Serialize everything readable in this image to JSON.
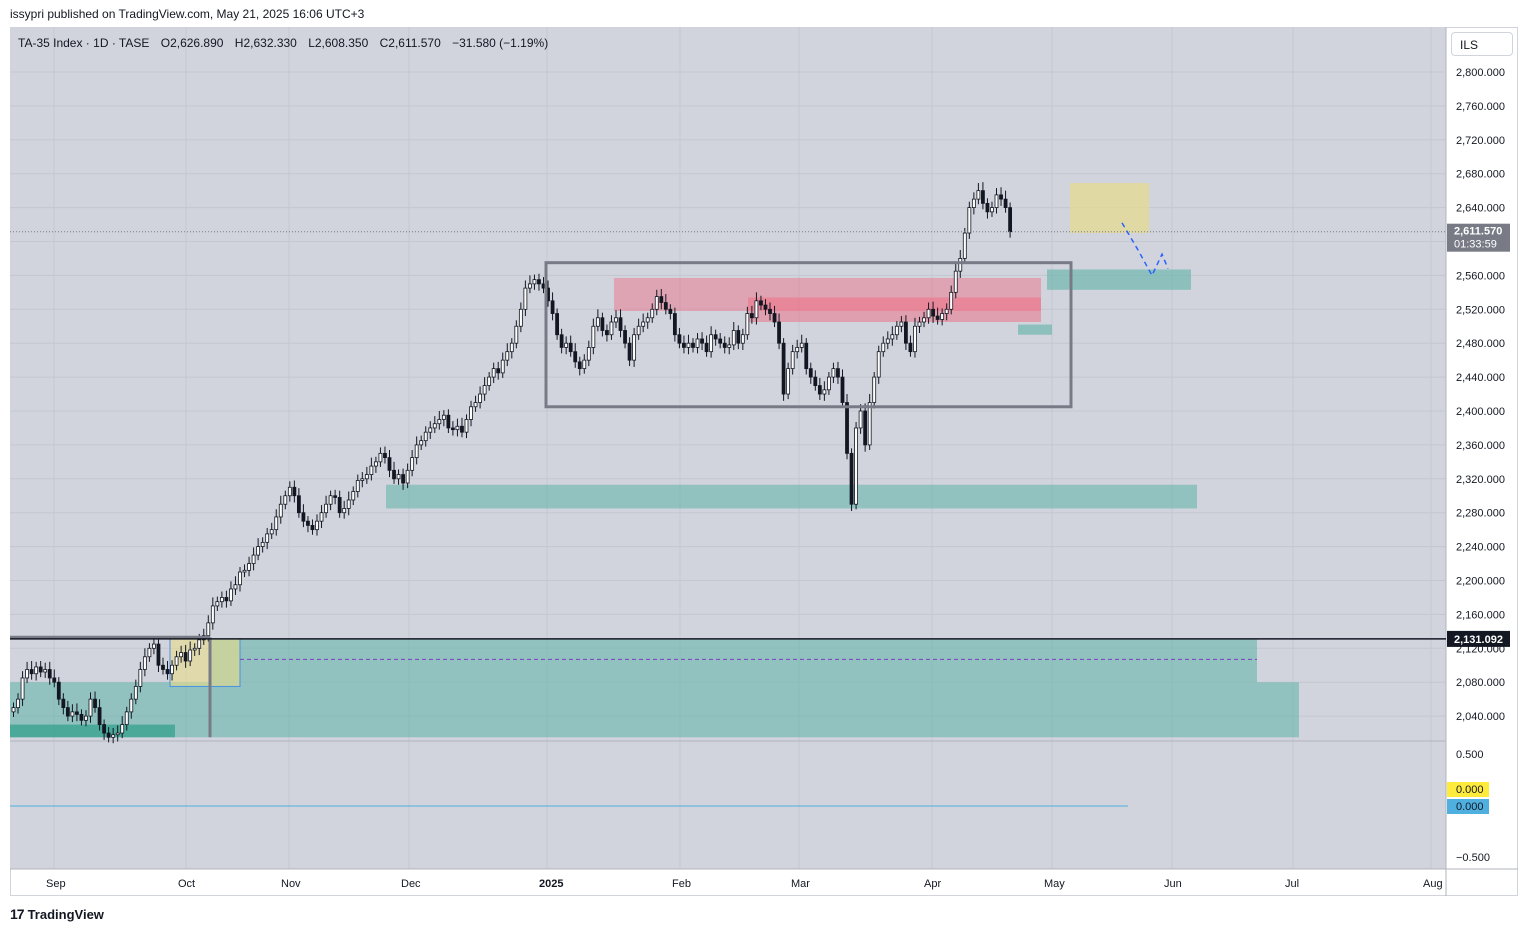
{
  "header": {
    "published": "issypri published on TradingView.com, May 21, 2025 16:06 UTC+3"
  },
  "legend": {
    "symbol": "TA-35 Index · 1D · TASE",
    "open": "O2,626.890",
    "high": "H2,632.330",
    "low": "L2,608.350",
    "close": "C2,611.570",
    "change": "−31.580 (−1.19%)"
  },
  "currency_button": "ILS",
  "footer": {
    "brand": "TradingView",
    "logo": "17"
  },
  "colors": {
    "bg": "#d1d4dc",
    "candle": "#131722",
    "teal_zone": "#5fb3a7",
    "red_zone": "#f06a80",
    "yellow_zone": "#e8dc8c",
    "range_box": "#787b86",
    "projection": "#2962ff"
  },
  "chart_data": {
    "type": "candlestick",
    "symbol": "TA-35 Index",
    "interval": "1D",
    "exchange": "TASE",
    "currency": "ILS",
    "ylim": [
      2000,
      2830
    ],
    "y_ticks": [
      "2,800.000",
      "2,760.000",
      "2,720.000",
      "2,680.000",
      "2,640.000",
      "2,600.000",
      "2,560.000",
      "2,520.000",
      "2,480.000",
      "2,440.000",
      "2,400.000",
      "2,360.000",
      "2,320.000",
      "2,280.000",
      "2,240.000",
      "2,200.000",
      "2,160.000",
      "2,120.000",
      "2,080.000",
      "2,040.000"
    ],
    "y_tick_values": [
      2800,
      2760,
      2720,
      2680,
      2640,
      2600,
      2560,
      2520,
      2480,
      2440,
      2400,
      2360,
      2320,
      2280,
      2240,
      2200,
      2160,
      2120,
      2080,
      2040
    ],
    "x_ticks": [
      "Sep",
      "Oct",
      "Nov",
      "Dec",
      "2025",
      "Feb",
      "Mar",
      "Apr",
      "May",
      "Jun",
      "Jul",
      "Aug"
    ],
    "last_price": {
      "label": "2,611.570",
      "countdown": "01:33:59",
      "value": 2611.57
    },
    "level_line": {
      "label": "2,131.092",
      "value": 2131.092
    },
    "indicator": {
      "ticks": [
        "0.500",
        "−0.500"
      ],
      "values": [
        "0.000",
        "0.000"
      ],
      "colors": [
        "#ffeb3b",
        "#4fb0e0"
      ]
    },
    "closes": [
      2050,
      2060,
      2085,
      2095,
      2090,
      2098,
      2092,
      2095,
      2085,
      2080,
      2060,
      2050,
      2040,
      2045,
      2042,
      2035,
      2040,
      2060,
      2050,
      2030,
      2020,
      2015,
      2018,
      2020,
      2030,
      2045,
      2060,
      2075,
      2095,
      2110,
      2120,
      2125,
      2100,
      2095,
      2090,
      2100,
      2110,
      2115,
      2105,
      2118,
      2120,
      2130,
      2135,
      2150,
      2170,
      2175,
      2180,
      2176,
      2190,
      2195,
      2210,
      2212,
      2220,
      2230,
      2240,
      2245,
      2255,
      2260,
      2275,
      2290,
      2300,
      2310,
      2300,
      2280,
      2270,
      2265,
      2260,
      2270,
      2280,
      2290,
      2300,
      2298,
      2280,
      2285,
      2295,
      2305,
      2318,
      2320,
      2325,
      2335,
      2340,
      2350,
      2345,
      2330,
      2320,
      2325,
      2315,
      2330,
      2345,
      2360,
      2365,
      2375,
      2380,
      2385,
      2390,
      2395,
      2380,
      2378,
      2382,
      2375,
      2390,
      2405,
      2410,
      2420,
      2430,
      2440,
      2450,
      2445,
      2460,
      2470,
      2480,
      2500,
      2520,
      2545,
      2550,
      2555,
      2550,
      2545,
      2530,
      2515,
      2490,
      2475,
      2480,
      2470,
      2458,
      2450,
      2460,
      2475,
      2500,
      2510,
      2495,
      2490,
      2505,
      2510,
      2495,
      2480,
      2460,
      2490,
      2500,
      2505,
      2510,
      2520,
      2535,
      2528,
      2520,
      2515,
      2490,
      2480,
      2475,
      2480,
      2475,
      2485,
      2480,
      2470,
      2490,
      2485,
      2480,
      2475,
      2478,
      2495,
      2480,
      2490,
      2515,
      2510,
      2530,
      2525,
      2520,
      2515,
      2505,
      2480,
      2420,
      2450,
      2470,
      2475,
      2480,
      2450,
      2440,
      2430,
      2420,
      2425,
      2440,
      2450,
      2440,
      2410,
      2350,
      2290,
      2380,
      2400,
      2360,
      2410,
      2440,
      2470,
      2480,
      2485,
      2490,
      2500,
      2505,
      2480,
      2470,
      2500,
      2505,
      2510,
      2520,
      2512,
      2508,
      2515,
      2520,
      2540,
      2565,
      2580,
      2610,
      2640,
      2650,
      2660,
      2645,
      2635,
      2640,
      2655,
      2650,
      2640,
      2611.57
    ],
    "first_candle_date": "2024-08-26"
  }
}
